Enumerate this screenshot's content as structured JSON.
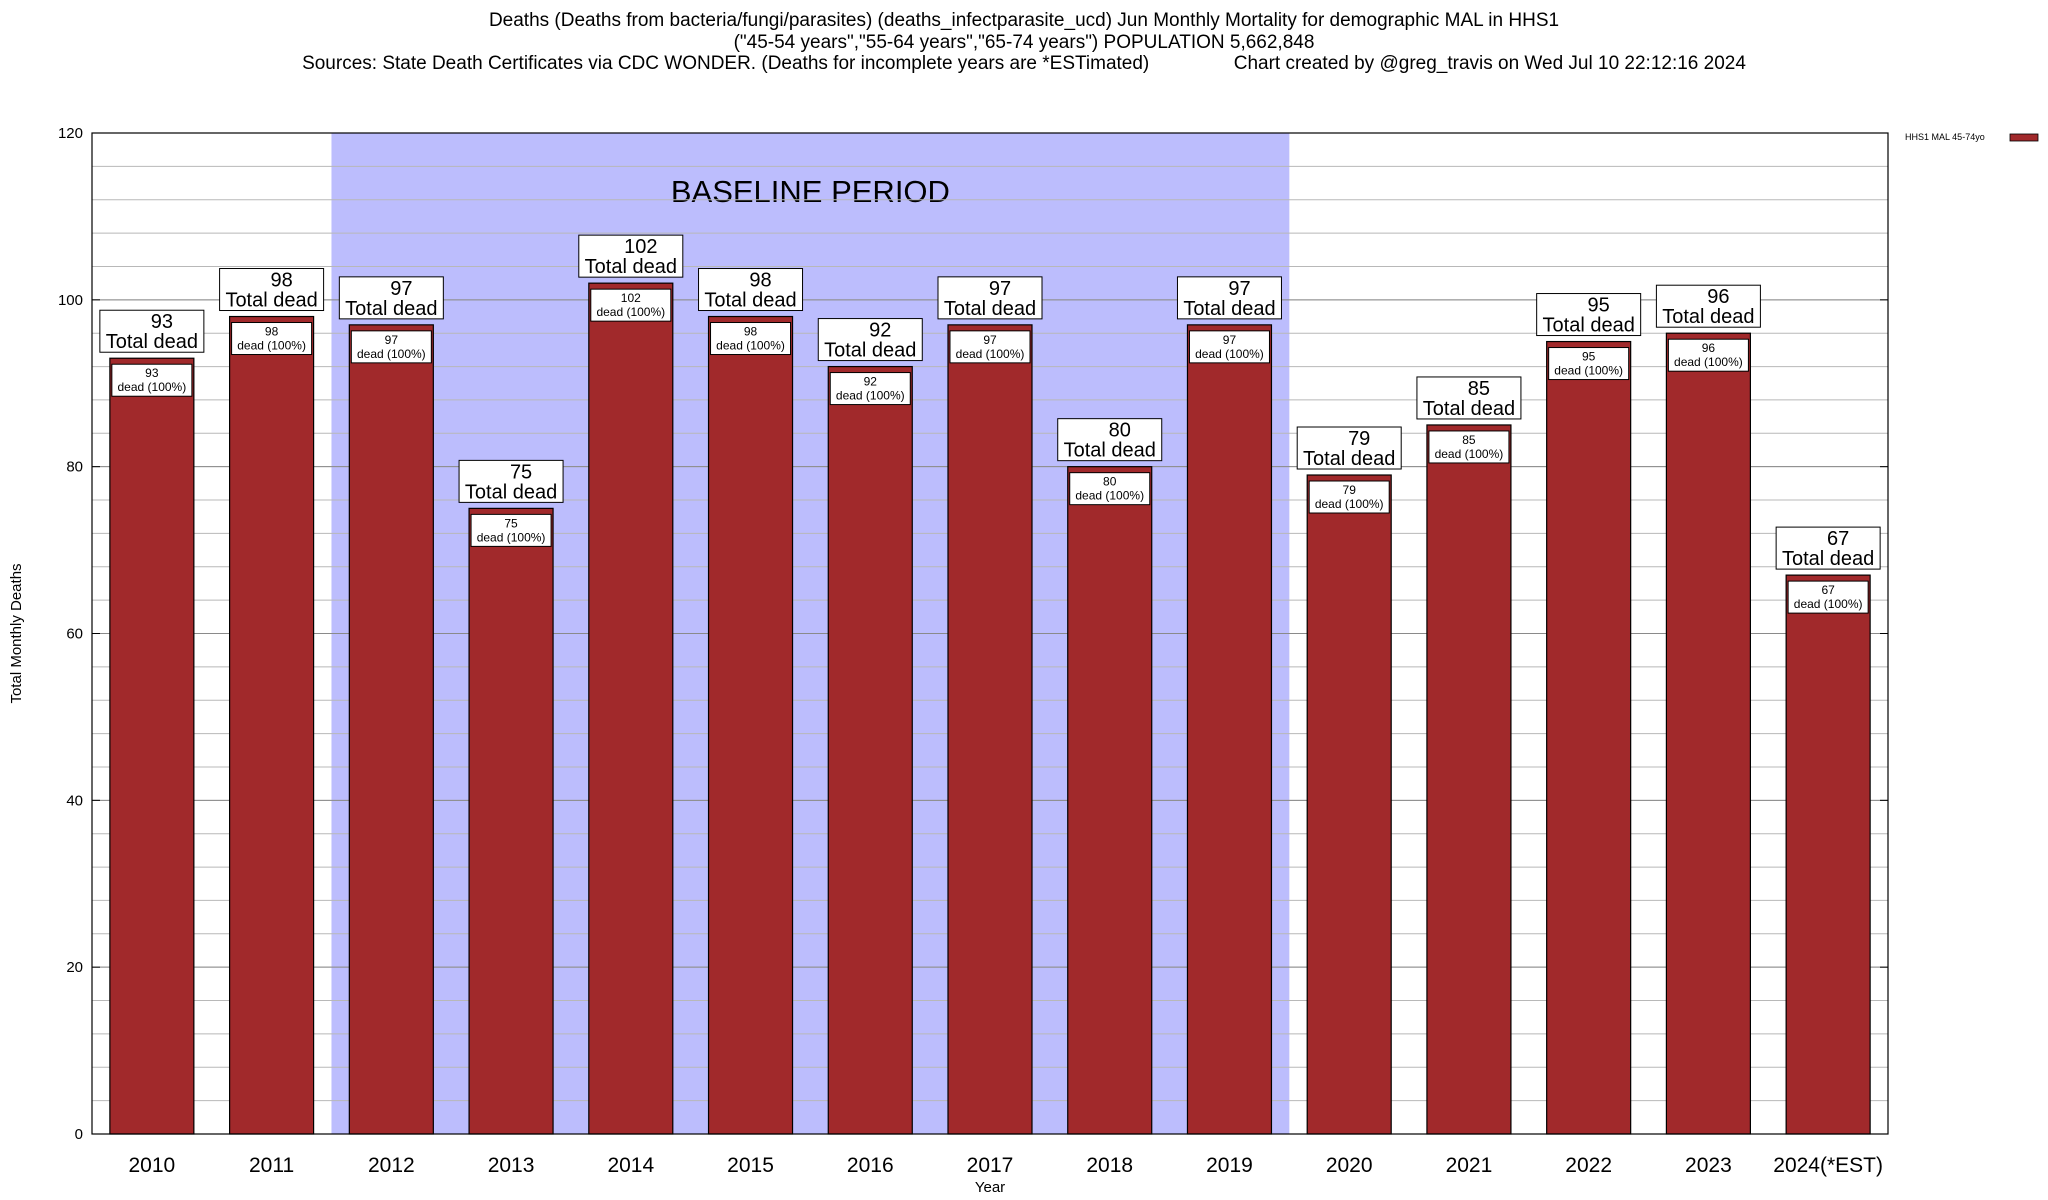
{
  "header": {
    "title_line1": "Deaths (Deaths from bacteria/fungi/parasites) (deaths_infectparasite_ucd) Jun Monthly Mortality for demographic MAL in HHS1",
    "title_line2": "(\"45-54 years\",\"55-64 years\",\"65-74 years\") POPULATION 5,662,848",
    "title_line3": "Sources: State Death Certificates via CDC WONDER. (Deaths for incomplete years are *ESTimated)                Chart created by @greg_travis on Wed Jul 10 22:12:16 2024"
  },
  "chart_data": {
    "type": "bar",
    "xlabel": "Year",
    "ylabel": "Total Monthly Deaths",
    "ylim": [
      0,
      120
    ],
    "y_ticks": [
      0,
      20,
      40,
      60,
      80,
      100,
      120
    ],
    "y_minor_step": 4,
    "grid": true,
    "legend_position": "top-right",
    "categories": [
      "2010",
      "2011",
      "2012",
      "2013",
      "2014",
      "2015",
      "2016",
      "2017",
      "2018",
      "2019",
      "2020",
      "2021",
      "2022",
      "2023",
      "2024(*EST)"
    ],
    "series": [
      {
        "name": "HHS1 MAL 45-74yo",
        "color": "#a1292b",
        "values": [
          93,
          98,
          97,
          75,
          102,
          98,
          92,
          97,
          80,
          97,
          79,
          85,
          95,
          96,
          67
        ]
      }
    ],
    "bar_label_top_suffix": "Total dead",
    "bar_label_inner_suffix": "dead (100%)",
    "baseline_period": {
      "label": "BASELINE PERIOD",
      "start": "2012",
      "end": "2019",
      "color": "#bcbdfd"
    }
  }
}
